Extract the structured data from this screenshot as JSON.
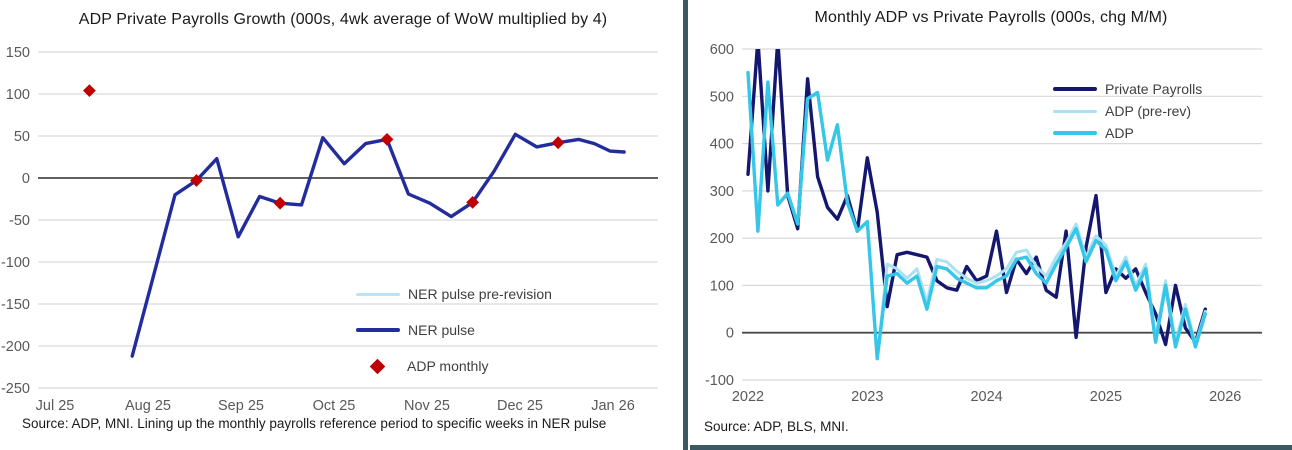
{
  "page": {
    "frame_color": "#3C5862",
    "background": "#ffffff"
  },
  "chart_data": [
    {
      "type": "line",
      "title": "ADP Private Payrolls Growth (000s, 4wk average of WoW multiplied by 4)",
      "source_note": "Source: ADP, MNI. Lining up the monthly payrolls reference period to specific weeks in NER pulse",
      "ylim": [
        -250,
        150
      ],
      "ytick_step": 50,
      "xlim": [
        -0.183,
        6.484
      ],
      "x_unit": "months since Jul 2025 (weekly data)",
      "grid": true,
      "legend_position": "inside-lower-right",
      "axis_color": "#595959",
      "grid_color": "#d9d9d9",
      "zero_line_color": "#4a4a4a",
      "xticks": [
        {
          "pos": 0,
          "label": "Jul 25"
        },
        {
          "pos": 1,
          "label": "Aug 25"
        },
        {
          "pos": 2,
          "label": "Sep 25"
        },
        {
          "pos": 3,
          "label": "Oct 25"
        },
        {
          "pos": 4,
          "label": "Nov 25"
        },
        {
          "pos": 5,
          "label": "Dec 25"
        },
        {
          "pos": 6,
          "label": "Jan 26"
        }
      ],
      "series": [
        {
          "name": "NER pulse pre-revision",
          "color": "#B8E4F4",
          "width": 3,
          "points": [
            [
              0.83,
              -212
            ],
            [
              1.29,
              -20
            ],
            [
              1.52,
              -3
            ],
            [
              1.74,
              23
            ],
            [
              1.97,
              -70
            ],
            [
              2.2,
              -22
            ],
            [
              2.42,
              -30
            ],
            [
              2.65,
              -32
            ],
            [
              2.88,
              48
            ],
            [
              3.11,
              17
            ],
            [
              3.34,
              41
            ],
            [
              3.57,
              46
            ],
            [
              3.8,
              -19
            ],
            [
              4.03,
              -30
            ],
            [
              4.26,
              -46
            ],
            [
              4.49,
              -29
            ],
            [
              4.72,
              8
            ],
            [
              4.95,
              52
            ],
            [
              5.18,
              37
            ],
            [
              5.41,
              42
            ],
            [
              5.63,
              46
            ],
            [
              5.8,
              41
            ],
            [
              5.97,
              32
            ],
            [
              6.12,
              31
            ]
          ]
        },
        {
          "name": "NER pulse",
          "color": "#232C9C",
          "width": 3.4,
          "points": [
            [
              0.83,
              -212
            ],
            [
              1.29,
              -20
            ],
            [
              1.52,
              -3
            ],
            [
              1.74,
              23
            ],
            [
              1.97,
              -70
            ],
            [
              2.2,
              -22
            ],
            [
              2.42,
              -30
            ],
            [
              2.65,
              -32
            ],
            [
              2.88,
              48
            ],
            [
              3.11,
              17
            ],
            [
              3.34,
              41
            ],
            [
              3.57,
              46
            ],
            [
              3.8,
              -19
            ],
            [
              4.03,
              -30
            ],
            [
              4.26,
              -46
            ],
            [
              4.49,
              -29
            ],
            [
              4.72,
              8
            ],
            [
              4.95,
              52
            ],
            [
              5.18,
              37
            ],
            [
              5.41,
              42
            ],
            [
              5.63,
              46
            ],
            [
              5.8,
              41
            ],
            [
              5.97,
              32
            ],
            [
              6.12,
              31
            ]
          ]
        },
        {
          "name": "ADP monthly",
          "color": "#C00000",
          "marker": "diamond",
          "points": [
            [
              0.37,
              104
            ],
            [
              1.52,
              -3
            ],
            [
              2.42,
              -30
            ],
            [
              3.57,
              46
            ],
            [
              4.49,
              -29
            ],
            [
              5.41,
              42
            ]
          ]
        }
      ]
    },
    {
      "type": "line",
      "title": "Monthly ADP vs Private Payrolls (000s, chg M/M)",
      "source_note": "Source: ADP, BLS, MNI.",
      "ylim": [
        -100,
        600
      ],
      "ytick_step": 100,
      "xlim": [
        -0.6,
        51.7
      ],
      "x_unit": "months since Jan 2022",
      "grid": true,
      "legend_position": "inside-upper-right",
      "axis_color": "#595959",
      "grid_color": "#d9d9d9",
      "zero_line_color": "#4a4a4a",
      "xticks": [
        {
          "pos": 0,
          "label": "2022"
        },
        {
          "pos": 12,
          "label": "2023"
        },
        {
          "pos": 24,
          "label": "2024"
        },
        {
          "pos": 36,
          "label": "2025"
        },
        {
          "pos": 48,
          "label": "2026"
        }
      ],
      "series": [
        {
          "name": "Private Payrolls",
          "color": "#15176E",
          "width": 3.4,
          "values": [
            335,
            620,
            300,
            620,
            290,
            220,
            537,
            330,
            265,
            240,
            290,
            215,
            370,
            255,
            55,
            165,
            170,
            165,
            160,
            110,
            95,
            90,
            140,
            110,
            120,
            215,
            85,
            155,
            125,
            160,
            90,
            75,
            215,
            -10,
            180,
            290,
            85,
            135,
            115,
            135,
            85,
            40,
            -25,
            100,
            10,
            -20,
            50
          ]
        },
        {
          "name": "ADP (pre-rev)",
          "color": "#ABE1F2",
          "width": 3,
          "values": [
            550,
            215,
            530,
            270,
            295,
            230,
            495,
            508,
            365,
            440,
            275,
            215,
            235,
            -55,
            145,
            135,
            115,
            135,
            65,
            155,
            150,
            130,
            115,
            105,
            110,
            120,
            135,
            170,
            175,
            140,
            120,
            160,
            190,
            230,
            160,
            205,
            185,
            120,
            160,
            100,
            145,
            -10,
            110,
            -20,
            60,
            -25,
            45
          ]
        },
        {
          "name": "ADP",
          "color": "#36C6E8",
          "width": 3.4,
          "values": [
            550,
            215,
            530,
            270,
            295,
            230,
            495,
            508,
            365,
            440,
            275,
            215,
            235,
            -55,
            120,
            125,
            105,
            120,
            50,
            140,
            135,
            115,
            105,
            95,
            95,
            110,
            120,
            155,
            160,
            125,
            105,
            145,
            180,
            220,
            150,
            195,
            175,
            110,
            150,
            90,
            135,
            -20,
            100,
            -30,
            50,
            -30,
            40
          ]
        }
      ]
    }
  ]
}
